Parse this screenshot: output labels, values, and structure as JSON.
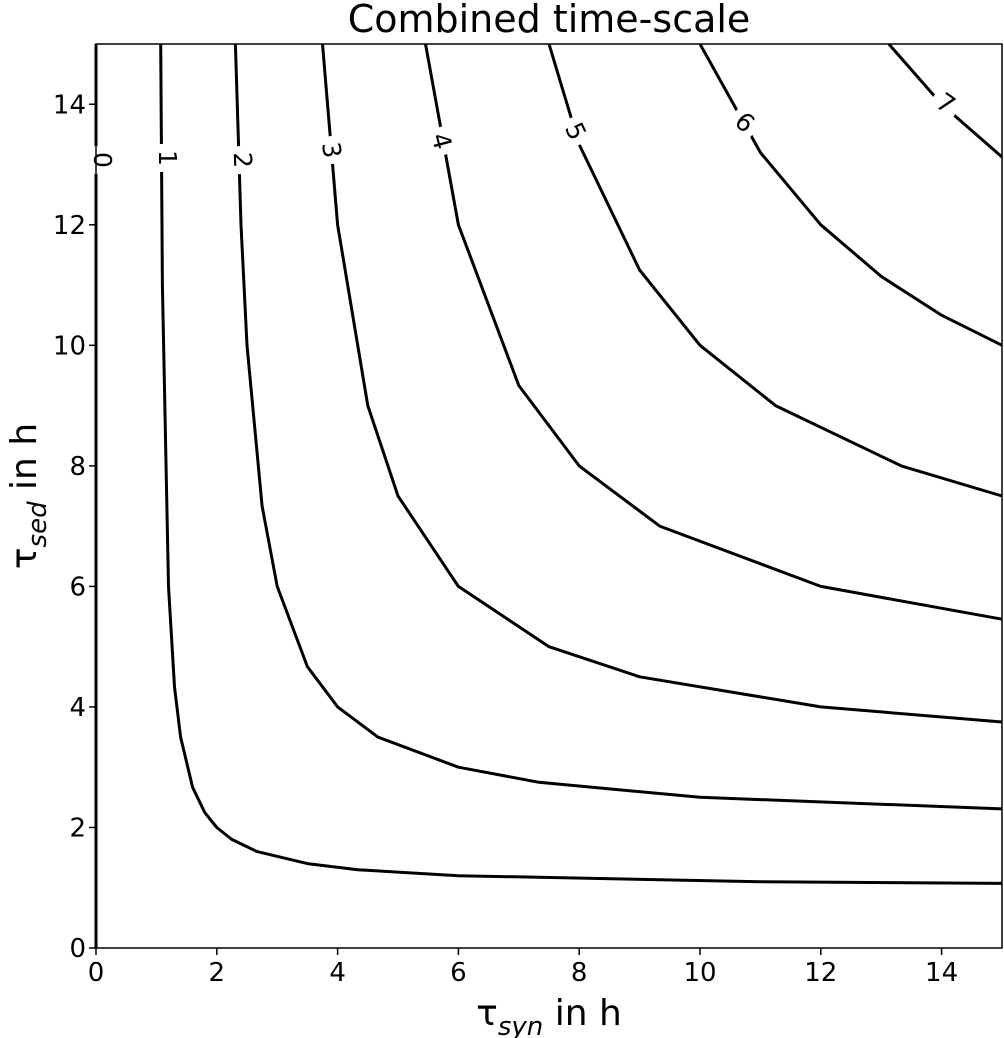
{
  "chart_data": {
    "type": "contour",
    "title": "Combined time-scale",
    "xlabel": {
      "symbol": "τ",
      "subscript": "syn",
      "text": " in h"
    },
    "ylabel": {
      "symbol": "τ",
      "subscript": "sed",
      "text": " in h"
    },
    "xlim": [
      0,
      15
    ],
    "ylim": [
      0,
      15
    ],
    "xticks": [
      0,
      2,
      4,
      6,
      8,
      10,
      12,
      14
    ],
    "yticks": [
      0,
      2,
      4,
      6,
      8,
      10,
      12,
      14
    ],
    "color": "#000000",
    "contours": [
      {
        "level": 0,
        "x": [
          0,
          0
        ],
        "y": [
          0,
          15
        ]
      },
      {
        "level": 1,
        "x": [
          1.0714,
          1.1,
          1.2,
          1.3,
          1.4,
          1.6,
          1.8,
          2,
          2.25,
          2.667,
          3.5,
          4.333,
          6,
          11,
          15
        ],
        "y": [
          15,
          11,
          6,
          4.333,
          3.5,
          2.667,
          2.25,
          2,
          1.8,
          1.6,
          1.4,
          1.3,
          1.2,
          1.1,
          1.0714
        ]
      },
      {
        "level": 2,
        "x": [
          2.308,
          2.4,
          2.5,
          2.75,
          3,
          3.5,
          4,
          4.667,
          6,
          7.333,
          10,
          15
        ],
        "y": [
          15,
          12,
          10,
          7.333,
          6,
          4.667,
          4,
          3.5,
          3,
          2.75,
          2.5,
          2.308
        ]
      },
      {
        "level": 3,
        "x": [
          3.75,
          4,
          4.5,
          5,
          6,
          7.5,
          9,
          12,
          15
        ],
        "y": [
          15,
          12,
          9,
          7.5,
          6,
          5,
          4.5,
          4,
          3.75
        ]
      },
      {
        "level": 4,
        "x": [
          5.455,
          6,
          7,
          8,
          9.333,
          12,
          15
        ],
        "y": [
          15,
          12,
          9.333,
          8,
          7,
          6,
          5.455
        ]
      },
      {
        "level": 5,
        "x": [
          7.5,
          8,
          9,
          10,
          11.25,
          13.333,
          15
        ],
        "y": [
          15,
          13.333,
          11.25,
          10,
          9,
          8,
          7.5
        ]
      },
      {
        "level": 6,
        "x": [
          10,
          11,
          12,
          13,
          14,
          15
        ],
        "y": [
          15,
          13.2,
          12,
          11.143,
          10.5,
          10
        ]
      },
      {
        "level": 7,
        "x": [
          13.125,
          14,
          15
        ],
        "y": [
          15,
          14,
          13.125
        ]
      }
    ]
  }
}
